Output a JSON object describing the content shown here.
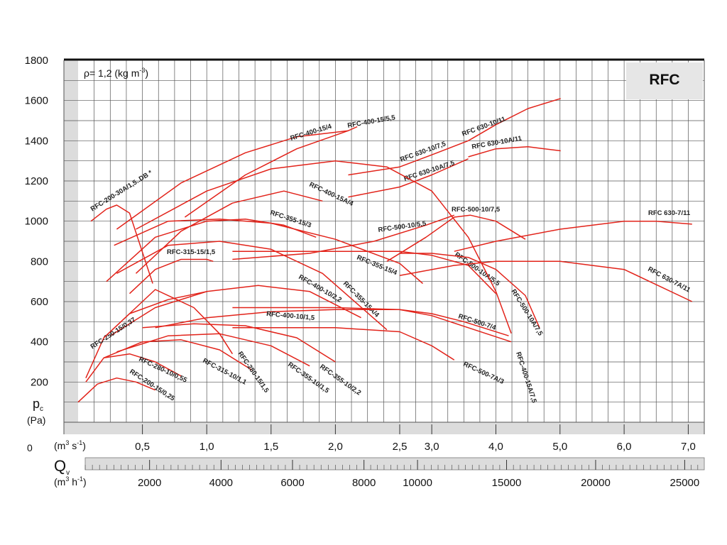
{
  "chart_data": {
    "type": "line",
    "title": "RFC",
    "density_label": {
      "text": "ρ= 1,2 (kg m",
      "sup": "-3",
      "end": ")"
    },
    "y_label": {
      "main": "p",
      "sub": "c",
      "unit": "(Pa)"
    },
    "origin_label": "0",
    "x_label": {
      "a": "(m",
      "b": "3",
      "c": " s",
      "d": "-1",
      "e": ")"
    },
    "x2_label": {
      "main": "Q",
      "sub": "v",
      "a": "(m",
      "b": "3",
      "c": " h",
      "d": "-1",
      "e": ")"
    },
    "xlim": [
      0,
      7.25
    ],
    "x_break": 2.5,
    "xticks": [
      {
        "value": 0.5,
        "label": "0,5"
      },
      {
        "value": 1.0,
        "label": "1,0"
      },
      {
        "value": 1.5,
        "label": "1,5"
      },
      {
        "value": 2.0,
        "label": "2,0"
      },
      {
        "value": 2.5,
        "label": "2,5"
      },
      {
        "value": 3.0,
        "label": "3,0"
      },
      {
        "value": 4.0,
        "label": "4,0"
      },
      {
        "value": 5.0,
        "label": "5,0"
      },
      {
        "value": 6.0,
        "label": "6,0"
      },
      {
        "value": 7.0,
        "label": "7,0"
      }
    ],
    "x2_per_x": 3600,
    "x2ticks": [
      2000,
      4000,
      6000,
      8000,
      10000,
      15000,
      20000,
      25000
    ],
    "ylim": [
      0,
      1800
    ],
    "yticks": [
      200,
      400,
      600,
      800,
      1000,
      1200,
      1400,
      1600,
      1800
    ],
    "grid": true,
    "series": [
      {
        "name": "RFC-200-30A/1,5..DB *",
        "color": "#e2231a",
        "x": [
          0.1,
          0.22,
          0.3,
          0.4,
          0.58
        ],
        "values": [
          1000,
          1060,
          1080,
          1040,
          690
        ]
      },
      {
        "name": "RFC-400-15/4",
        "color": "#e2231a",
        "x": [
          0.3,
          0.8,
          1.3,
          1.7,
          2.1
        ],
        "values": [
          960,
          1190,
          1340,
          1420,
          1450
        ]
      },
      {
        "name": "RFC-400-15/5,5",
        "color": "#e2231a",
        "x": [
          0.83,
          1.3,
          1.7,
          2.1,
          2.17
        ],
        "values": [
          1020,
          1230,
          1360,
          1450,
          1470
        ]
      },
      {
        "name": "RFC 630-10/7,5",
        "color": "#e2231a",
        "x": [
          2.1,
          2.5,
          3.0,
          3.57
        ],
        "values": [
          1230,
          1270,
          1330,
          1400
        ]
      },
      {
        "name": "RFC 630-10/11",
        "color": "#e2231a",
        "x": [
          3.57,
          4.0,
          4.5,
          5.01
        ],
        "values": [
          1400,
          1480,
          1560,
          1610
        ]
      },
      {
        "name": "RFC 630-10A/11",
        "color": "#e2231a",
        "x": [
          3.57,
          4.0,
          4.5,
          5.01
        ],
        "values": [
          1320,
          1360,
          1370,
          1350
        ]
      },
      {
        "name": "RFC 630-10A/7,5",
        "color": "#e2231a",
        "x": [
          2.1,
          2.5,
          3.0,
          3.57
        ],
        "values": [
          1120,
          1170,
          1230,
          1310
        ]
      },
      {
        "name": "RFC-400-15A/4",
        "color": "#e2231a",
        "x": [
          0.45,
          0.8,
          1.2,
          1.6,
          1.9
        ],
        "values": [
          740,
          950,
          1090,
          1150,
          1100
        ]
      },
      {
        "name": "RFC-355-15/3",
        "color": "#e2231a",
        "x": [
          0.22,
          0.6,
          1.0,
          1.3,
          1.6,
          1.85
        ],
        "values": [
          700,
          920,
          1000,
          1010,
          980,
          920
        ]
      },
      {
        "name": "RFC-500-10/5,5",
        "color": "#e2231a",
        "x": [
          1.2,
          1.8,
          2.3,
          2.91,
          3.35
        ],
        "values": [
          810,
          840,
          900,
          980,
          1030
        ]
      },
      {
        "name": "RFC-500-10/7,5",
        "color": "#e2231a",
        "x": [
          2.4,
          2.91,
          3.35,
          3.6,
          4.0,
          4.46
        ],
        "values": [
          800,
          920,
          1020,
          1030,
          1000,
          910
        ]
      },
      {
        "name": "RFC 630-7/11",
        "color": "#e2231a",
        "x": [
          3.35,
          4.0,
          5.0,
          6.0,
          6.5,
          7.06
        ],
        "values": [
          850,
          900,
          960,
          1000,
          1000,
          985
        ]
      },
      {
        "name": "RFC-315-15/1,5",
        "color": "#e2231a",
        "x": [
          0.4,
          0.6,
          0.8,
          1.0,
          1.05
        ],
        "values": [
          640,
          760,
          810,
          810,
          800
        ]
      },
      {
        "name": "RFC-355-15/4",
        "color": "#e2231a",
        "x": [
          0.28,
          0.7,
          1.1,
          1.5,
          2.0,
          2.5,
          2.86
        ],
        "values": [
          880,
          1000,
          1010,
          990,
          910,
          790,
          690
        ]
      },
      {
        "name": "RFC-500-10A/5,5",
        "color": "#e2231a",
        "x": [
          1.2,
          2.0,
          2.5,
          3.0,
          3.57,
          4.0
        ],
        "values": [
          850,
          850,
          850,
          830,
          780,
          640
        ]
      },
      {
        "name": "RFC 630-7A/11",
        "color": "#e2231a",
        "x": [
          2.5,
          3.35,
          4.0,
          5.0,
          6.0,
          7.06
        ],
        "values": [
          730,
          780,
          800,
          800,
          760,
          600
        ]
      },
      {
        "name": "RFC-400-10/2,2",
        "color": "#e2231a",
        "x": [
          0.25,
          0.6,
          1.0,
          1.4,
          1.8,
          2.2
        ],
        "values": [
          430,
          570,
          650,
          680,
          650,
          520
        ]
      },
      {
        "name": "RFC-355-15A/4",
        "color": "#e2231a",
        "x": [
          0.3,
          0.7,
          1.1,
          1.5,
          1.9,
          2.4
        ],
        "values": [
          740,
          880,
          900,
          860,
          740,
          460
        ]
      },
      {
        "name": "RFC-500-10A/7,5",
        "color": "#e2231a",
        "x": [
          2.5,
          3.0,
          3.57,
          4.0,
          4.46,
          4.68
        ],
        "values": [
          840,
          840,
          820,
          760,
          630,
          470
        ]
      },
      {
        "name": "RFC-400-10/1,5",
        "color": "#e2231a",
        "x": [
          0.6,
          1.0,
          1.5,
          2.0,
          2.5,
          3.0,
          3.5,
          4.2
        ],
        "values": [
          470,
          520,
          550,
          560,
          560,
          540,
          500,
          430
        ]
      },
      {
        "name": "RFC-250-15/0,37",
        "color": "#e2231a",
        "x": [
          0.06,
          0.2,
          0.4,
          0.7,
          1.0
        ],
        "values": [
          220,
          420,
          540,
          610,
          650
        ]
      },
      {
        "name": "RFC-500-7/4",
        "color": "#e2231a",
        "x": [
          1.2,
          2.0,
          2.5,
          3.0,
          3.57,
          4.24
        ],
        "values": [
          570,
          570,
          560,
          530,
          470,
          400
        ]
      },
      {
        "name": "RFC-400-15A/7,5",
        "color": "#e2231a",
        "x": [
          0.45,
          1.0,
          1.5,
          2.0,
          2.4,
          3.0,
          3.57,
          4.0,
          4.24
        ],
        "values": [
          960,
          1150,
          1260,
          1300,
          1270,
          1150,
          920,
          650,
          442
        ]
      },
      {
        "name": "RFC-280-10/0,55",
        "color": "#e2231a",
        "x": [
          0.06,
          0.2,
          0.4,
          0.6,
          0.8
        ],
        "values": [
          200,
          320,
          340,
          300,
          230
        ]
      },
      {
        "name": "RFC-200-15/0,25",
        "color": "#e2231a",
        "x": [
          0.0,
          0.15,
          0.3,
          0.45,
          0.6
        ],
        "values": [
          100,
          190,
          220,
          200,
          160
        ]
      },
      {
        "name": "RFC-315-10/1,1",
        "color": "#e2231a",
        "x": [
          0.2,
          0.5,
          0.8,
          1.1,
          1.35
        ],
        "values": [
          320,
          400,
          410,
          360,
          260
        ]
      },
      {
        "name": "RFC-280-15/1,5",
        "color": "#e2231a",
        "x": [
          0.2,
          0.6,
          0.9,
          1.1,
          1.2
        ],
        "values": [
          420,
          660,
          570,
          440,
          340
        ]
      },
      {
        "name": "RFC-355-10/1,5",
        "color": "#e2231a",
        "x": [
          0.3,
          0.7,
          1.1,
          1.5,
          1.8
        ],
        "values": [
          350,
          430,
          440,
          380,
          280
        ]
      },
      {
        "name": "RFC-355-10/2,2",
        "color": "#e2231a",
        "x": [
          0.5,
          0.9,
          1.3,
          1.7,
          2.0
        ],
        "values": [
          470,
          490,
          480,
          420,
          300
        ]
      },
      {
        "name": "RFC-500-7A/3",
        "color": "#e2231a",
        "x": [
          1.2,
          2.0,
          2.5,
          3.0,
          3.35
        ],
        "values": [
          470,
          470,
          450,
          380,
          310
        ]
      }
    ]
  }
}
